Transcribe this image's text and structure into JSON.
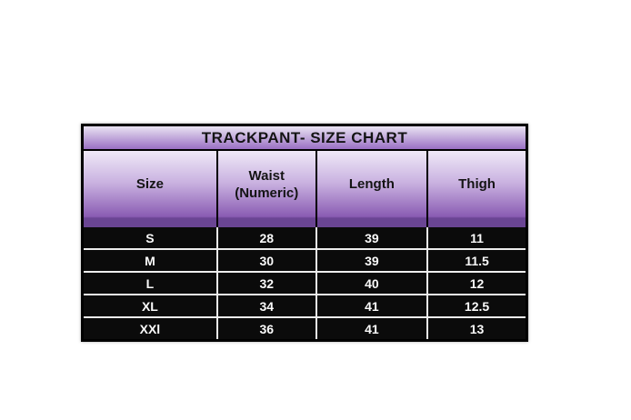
{
  "title": "TRACKPANT- SIZE CHART",
  "header": {
    "size": "Size",
    "waist_line1": "Waist",
    "waist_line2": "(Numeric)",
    "length": "Length",
    "thigh": "Thigh"
  },
  "chart_data": {
    "type": "table",
    "title": "TRACKPANT- SIZE CHART",
    "columns": [
      "Size",
      "Waist (Numeric)",
      "Length",
      "Thigh"
    ],
    "rows": [
      [
        "S",
        "28",
        "39",
        "11"
      ],
      [
        "M",
        "30",
        "39",
        "11.5"
      ],
      [
        "L",
        "32",
        "40",
        "12"
      ],
      [
        "XL",
        "34",
        "41",
        "12.5"
      ],
      [
        "XXl",
        "36",
        "41",
        "13"
      ]
    ]
  },
  "colors": {
    "page_bg": "#ffffff",
    "border": "#000000",
    "title_grad_top": "#e9e3f2",
    "title_grad_bottom": "#9a70c4",
    "header_grad_top": "#efe9f7",
    "header_grad_bottom": "#8a5cb3",
    "band_dark": "#6a4593",
    "header_text": "#141414",
    "row_bg": "#0b0b0b",
    "row_text": "#fafafa",
    "separator_light": "#ededed"
  }
}
